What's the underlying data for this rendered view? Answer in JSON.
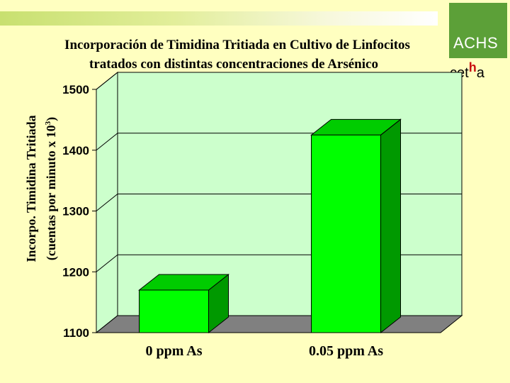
{
  "header": {
    "logo_text": "ACHS",
    "cetha_prefix": "cet",
    "cetha_h": "h",
    "cetha_suffix": "a"
  },
  "chart_data": {
    "type": "bar",
    "title_line1": "Incorporación de Timidina Tritiada en Cultivo de Linfocitos",
    "title_line2": "tratados con distintas concentraciones de Arsénico",
    "ylabel_line1": "Incorpo. Timidina Tritiada",
    "ylabel_line2": "(cuentas por minuto x 10",
    "ylabel_sup": "3",
    "ylabel_close": ")",
    "categories": [
      "0 ppm As",
      "0.05 ppm As"
    ],
    "values": [
      1170,
      1425
    ],
    "ylim": [
      1100,
      1500
    ],
    "yticks": [
      "1100",
      "1200",
      "1300",
      "1400",
      "1500"
    ],
    "grid": true,
    "bar_color": "#00FF00",
    "plot_bg": "#CCFFCC",
    "floor_color": "#808080"
  }
}
